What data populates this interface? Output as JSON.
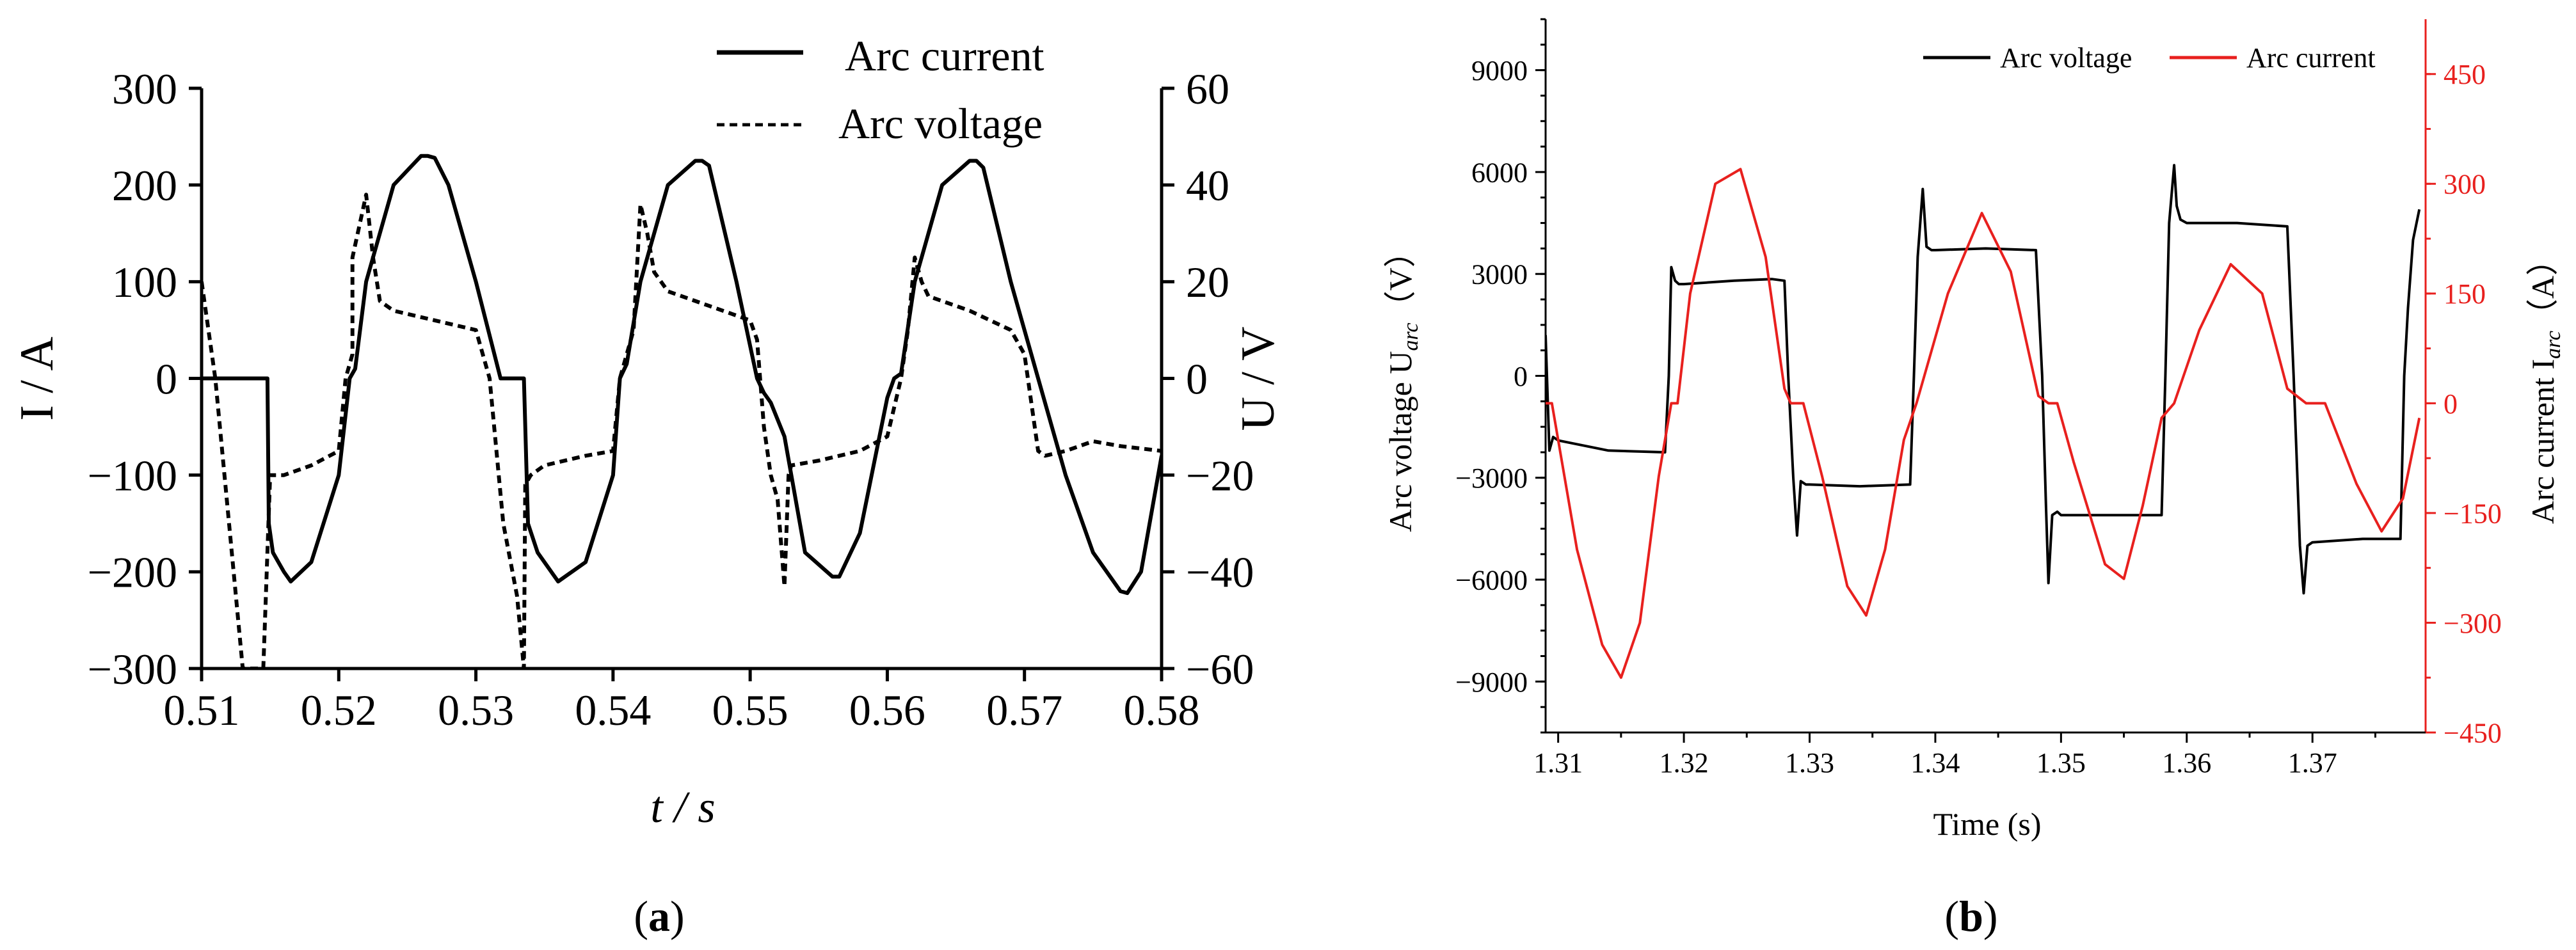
{
  "figure": {
    "panel_a_label": "a",
    "panel_b_label": "b"
  },
  "chart_data": [
    {
      "type": "line",
      "panel": "a",
      "xlabel": "t / s",
      "ylabel_left": "I / A",
      "ylabel_right": "U / V",
      "xlim": [
        0.51,
        0.58
      ],
      "ylim_left": [
        -300,
        300
      ],
      "ylim_right": [
        -60,
        60
      ],
      "x_ticks": [
        "0.51",
        "0.52",
        "0.53",
        "0.54",
        "0.55",
        "0.56",
        "0.57",
        "0.58"
      ],
      "y_ticks_left": [
        "300",
        "200",
        "100",
        "0",
        "−100",
        "−200",
        "−300"
      ],
      "y_ticks_right": [
        "60",
        "40",
        "20",
        "0",
        "−20",
        "−40",
        "−60"
      ],
      "legend": [
        "Arc current",
        "Arc voltage"
      ],
      "legend_position": "top-right",
      "series": [
        {
          "name": "Arc current",
          "axis": "left",
          "style": "solid",
          "color": "#000000",
          "x": [
            0.51,
            0.5148,
            0.5149,
            0.5152,
            0.516,
            0.5165,
            0.518,
            0.52,
            0.5208,
            0.5212,
            0.522,
            0.524,
            0.526,
            0.5265,
            0.527,
            0.528,
            0.53,
            0.5318,
            0.5322,
            0.5335,
            0.5338,
            0.5345,
            0.536,
            0.538,
            0.54,
            0.5405,
            0.541,
            0.542,
            0.544,
            0.546,
            0.5465,
            0.547,
            0.549,
            0.5505,
            0.551,
            0.5515,
            0.5525,
            0.554,
            0.556,
            0.5565,
            0.558,
            0.56,
            0.5605,
            0.561,
            0.562,
            0.564,
            0.566,
            0.5665,
            0.567,
            0.569,
            0.571,
            0.573,
            0.575,
            0.577,
            0.5775,
            0.5785,
            0.58
          ],
          "values": [
            0,
            0,
            -150,
            -180,
            -200,
            -210,
            -190,
            -100,
            0,
            10,
            100,
            200,
            230,
            230,
            228,
            200,
            100,
            0,
            0,
            0,
            -150,
            -180,
            -210,
            -190,
            -100,
            0,
            15,
            100,
            200,
            225,
            225,
            220,
            100,
            0,
            -15,
            -25,
            -60,
            -180,
            -205,
            -205,
            -160,
            -20,
            0,
            5,
            100,
            200,
            225,
            225,
            218,
            100,
            0,
            -100,
            -180,
            -220,
            -222,
            -200,
            -80
          ]
        },
        {
          "name": "Arc voltage",
          "axis": "right",
          "style": "dashed",
          "color": "#000000",
          "x": [
            0.51,
            0.511,
            0.512,
            0.513,
            0.5135,
            0.5145,
            0.515,
            0.516,
            0.518,
            0.52,
            0.5205,
            0.521,
            0.521,
            0.522,
            0.5225,
            0.523,
            0.524,
            0.527,
            0.53,
            0.5305,
            0.531,
            0.532,
            0.533,
            0.5335,
            0.5336,
            0.534,
            0.535,
            0.538,
            0.54,
            0.5405,
            0.541,
            0.5415,
            0.542,
            0.5425,
            0.543,
            0.544,
            0.547,
            0.55,
            0.5505,
            0.551,
            0.5515,
            0.552,
            0.5525,
            0.5528,
            0.553,
            0.555,
            0.558,
            0.56,
            0.561,
            0.5615,
            0.562,
            0.5625,
            0.563,
            0.566,
            0.569,
            0.57,
            0.5705,
            0.571,
            0.5715,
            0.573,
            0.575,
            0.577,
            0.58
          ],
          "values": [
            20,
            0,
            -30,
            -60,
            -60,
            -60,
            -20,
            -20,
            -18,
            -15,
            0,
            5,
            25,
            38,
            25,
            16,
            14,
            12,
            10,
            5,
            0,
            -30,
            -45,
            -60,
            -22,
            -20,
            -18,
            -16,
            -15,
            0,
            5,
            10,
            36,
            30,
            22,
            18,
            15,
            12,
            8,
            -10,
            -20,
            -25,
            -43,
            -20,
            -18,
            -17,
            -15,
            -12,
            0,
            10,
            25,
            20,
            17,
            14,
            10,
            5,
            -5,
            -15,
            -16,
            -15,
            -13,
            -14,
            -15
          ]
        }
      ]
    },
    {
      "type": "line",
      "panel": "b",
      "xlabel": "Time (s)",
      "ylabel_left": "Arc voltage  U",
      "ylabel_left_sub": "arc",
      "ylabel_left_unit": "（V）",
      "ylabel_right": "Arc current I",
      "ylabel_right_sub": "arc",
      "ylabel_right_unit": "（A）",
      "xlim": [
        1.309,
        1.379
      ],
      "ylim_left": [
        -10500,
        10500
      ],
      "ylim_right": [
        -450,
        525
      ],
      "x_ticks": [
        "1.31",
        "1.32",
        "1.33",
        "1.34",
        "1.35",
        "1.36",
        "1.37"
      ],
      "y_ticks_left": [
        "9000",
        "6000",
        "3000",
        "0",
        "−3000",
        "−6000",
        "−9000"
      ],
      "y_ticks_right": [
        "450",
        "300",
        "150",
        "0",
        "−150",
        "−300",
        "−450"
      ],
      "legend": [
        "Arc voltage",
        "Arc current"
      ],
      "legend_position": "top-right",
      "series": [
        {
          "name": "Arc voltage",
          "axis": "left",
          "color": "#000000",
          "x": [
            1.309,
            1.3093,
            1.3096,
            1.31,
            1.314,
            1.3185,
            1.3188,
            1.319,
            1.3193,
            1.3196,
            1.32,
            1.324,
            1.327,
            1.328,
            1.3283,
            1.3287,
            1.329,
            1.3293,
            1.3297,
            1.33,
            1.334,
            1.338,
            1.3383,
            1.3386,
            1.339,
            1.3393,
            1.3397,
            1.34,
            1.344,
            1.348,
            1.3485,
            1.3488,
            1.349,
            1.3493,
            1.3497,
            1.35,
            1.354,
            1.358,
            1.3583,
            1.3586,
            1.359,
            1.3592,
            1.3595,
            1.36,
            1.364,
            1.368,
            1.3685,
            1.369,
            1.3693,
            1.3696,
            1.37,
            1.374,
            1.377,
            1.3773,
            1.3776,
            1.378,
            1.3785
          ],
          "values": [
            1200,
            -2200,
            -1800,
            -1900,
            -2200,
            -2250,
            0,
            3200,
            2800,
            2700,
            2700,
            2800,
            2850,
            2800,
            0,
            -3000,
            -4700,
            -3100,
            -3200,
            -3200,
            -3250,
            -3200,
            0,
            3500,
            5500,
            3800,
            3700,
            3700,
            3750,
            3700,
            0,
            -3800,
            -6100,
            -4100,
            -4000,
            -4100,
            -4100,
            -4100,
            0,
            4500,
            6200,
            5000,
            4600,
            4500,
            4500,
            4400,
            0,
            -5000,
            -6400,
            -5000,
            -4900,
            -4800,
            -4800,
            0,
            2000,
            4000,
            4900
          ]
        },
        {
          "name": "Arc current",
          "axis": "right",
          "color": "#e8201e",
          "x": [
            1.309,
            1.3095,
            1.3115,
            1.3135,
            1.315,
            1.3165,
            1.318,
            1.319,
            1.3195,
            1.3205,
            1.3225,
            1.3245,
            1.3265,
            1.328,
            1.3285,
            1.329,
            1.3295,
            1.331,
            1.333,
            1.3345,
            1.336,
            1.3375,
            1.3385,
            1.341,
            1.3437,
            1.346,
            1.3482,
            1.349,
            1.3497,
            1.351,
            1.3535,
            1.355,
            1.3565,
            1.358,
            1.359,
            1.361,
            1.3635,
            1.366,
            1.368,
            1.3695,
            1.371,
            1.3735,
            1.3755,
            1.3772,
            1.3785
          ],
          "values": [
            0,
            0,
            -200,
            -330,
            -375,
            -300,
            -100,
            0,
            0,
            150,
            300,
            320,
            200,
            20,
            0,
            0,
            0,
            -100,
            -250,
            -290,
            -200,
            -50,
            0,
            150,
            260,
            180,
            10,
            0,
            0,
            -80,
            -220,
            -240,
            -140,
            -20,
            0,
            100,
            190,
            150,
            20,
            0,
            0,
            -110,
            -175,
            -130,
            -20
          ]
        }
      ]
    }
  ]
}
